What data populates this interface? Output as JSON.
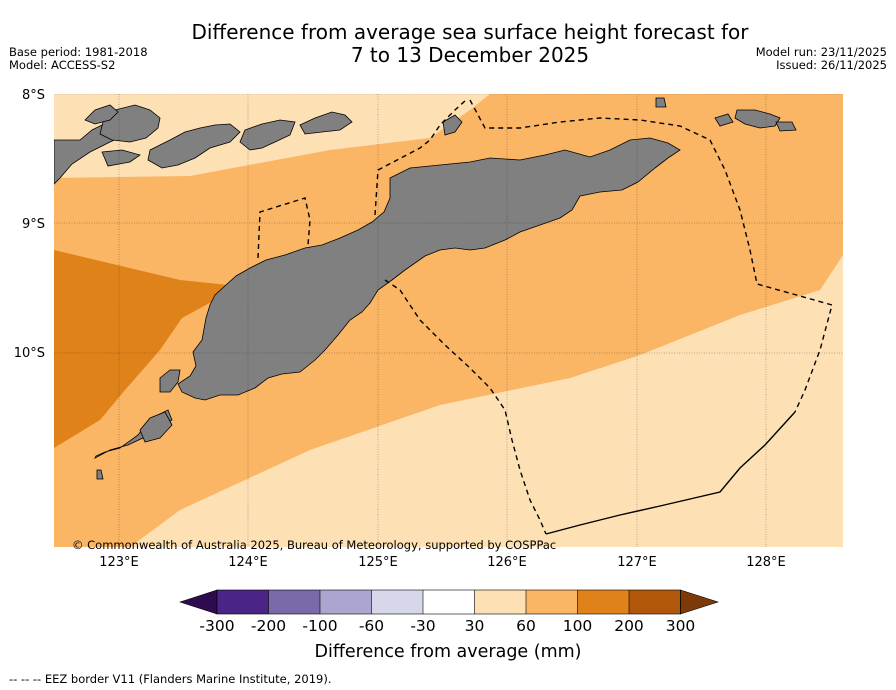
{
  "header": {
    "title_line1": "Difference from average sea surface height forecast for",
    "title_line2": "7 to 13 December 2025",
    "base_period": "Base period: 1981-2018",
    "model": "Model: ACCESS-S2",
    "model_run": "Model run: 23/11/2025",
    "issued": "Issued: 26/11/2025"
  },
  "map": {
    "lat_labels": [
      "8°S",
      "9°S",
      "10°S"
    ],
    "lon_labels": [
      "123°E",
      "124°E",
      "125°E",
      "126°E",
      "127°E",
      "128°E"
    ],
    "copyright": "© Commonwealth of Australia 2025, Bureau of Meteorology, supported by COSPPac",
    "colors": {
      "class_30_60": "#fde0b4",
      "class_60_100": "#fab565",
      "class_100_200": "#e0821a",
      "land": "#808080",
      "eez_line": "#000000"
    }
  },
  "colorbar": {
    "tick_labels": [
      "-300",
      "-200",
      "-100",
      "-60",
      "-30",
      "30",
      "60",
      "100",
      "200",
      "300"
    ],
    "colors": [
      "#2d0b4e",
      "#4b2585",
      "#7b6aaa",
      "#aba5cf",
      "#d7d7ea",
      "#ffffff",
      "#fde0b4",
      "#fab565",
      "#e0821a",
      "#b1570c",
      "#7b3a07"
    ],
    "label": "Difference from average (mm)"
  },
  "footer": {
    "eez_legend": "--  --  -- EEZ border V11 (Flanders Marine Institute, 2019)."
  }
}
